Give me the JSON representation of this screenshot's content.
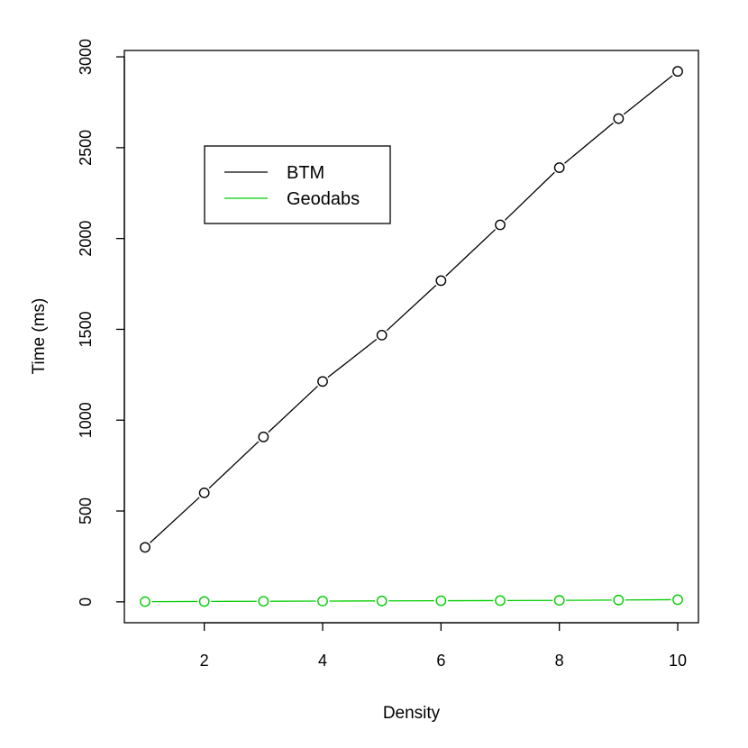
{
  "chart_data": {
    "type": "line",
    "title": "",
    "xlabel": "Density",
    "ylabel": "Time (ms)",
    "xlim": [
      0.65,
      10.35
    ],
    "ylim": [
      -115,
      3035
    ],
    "x_ticks": [
      2,
      4,
      6,
      8,
      10
    ],
    "y_ticks": [
      0,
      500,
      1000,
      1500,
      2000,
      2500,
      3000
    ],
    "x": [
      1,
      2,
      3,
      4,
      5,
      6,
      7,
      8,
      9,
      10
    ],
    "series": [
      {
        "name": "BTM",
        "color": "#000000",
        "marker": "open-circle",
        "values": [
          300,
          600,
          908,
          1213,
          1468,
          1768,
          2075,
          2390,
          2660,
          2920
        ]
      },
      {
        "name": "Geodabs",
        "color": "#00cd00",
        "marker": "open-circle",
        "values": [
          1,
          2,
          3,
          4,
          5,
          6,
          7,
          8,
          10,
          12
        ]
      }
    ],
    "legend_position": "top-left",
    "grid": false
  }
}
